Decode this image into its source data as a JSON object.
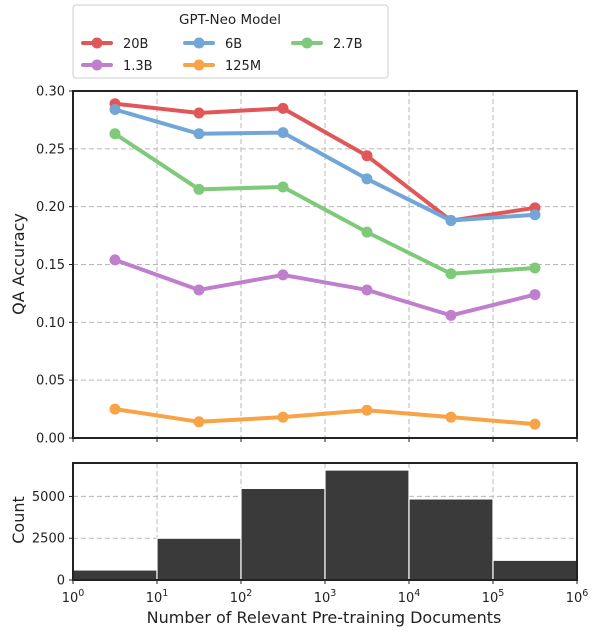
{
  "chart_data": [
    {
      "type": "line",
      "x": [
        3.16,
        31.6,
        316,
        3160,
        31600,
        316000
      ],
      "x_scale": "log",
      "ylabel": "QA Accuracy",
      "ylim": [
        0,
        0.3
      ],
      "yticks": [
        "0.00",
        "0.05",
        "0.10",
        "0.15",
        "0.20",
        "0.25",
        "0.30"
      ],
      "grid": true,
      "legend": {
        "title": "GPT-Neo Model",
        "placement": "top, above plot",
        "columns": 3
      },
      "series": [
        {
          "name": "20B",
          "color": "#e15759",
          "values": [
            0.289,
            0.281,
            0.285,
            0.244,
            0.188,
            0.199
          ]
        },
        {
          "name": "6B",
          "color": "#72a6d6",
          "values": [
            0.284,
            0.263,
            0.264,
            0.224,
            0.188,
            0.193
          ]
        },
        {
          "name": "2.7B",
          "color": "#7ec97a",
          "values": [
            0.263,
            0.215,
            0.217,
            0.178,
            0.142,
            0.147
          ]
        },
        {
          "name": "1.3B",
          "color": "#c07fcc",
          "values": [
            0.154,
            0.128,
            0.141,
            0.128,
            0.106,
            0.124
          ]
        },
        {
          "name": "125M",
          "color": "#f8a346",
          "values": [
            0.025,
            0.014,
            0.018,
            0.024,
            0.018,
            0.012
          ]
        }
      ]
    },
    {
      "type": "bar",
      "x_scale": "log",
      "bin_edges": [
        1,
        10,
        100,
        1000,
        10000,
        100000,
        1000000
      ],
      "values": [
        600,
        2500,
        5480,
        6580,
        4850,
        1180
      ],
      "color": "#3a3a3a",
      "xlabel": "Number of Relevant Pre-training Documents",
      "ylabel": "Count",
      "ylim": [
        0,
        7000
      ],
      "yticks": [
        "0",
        "2500",
        "5000"
      ],
      "xticks": [
        {
          "base": "10",
          "exp": "0"
        },
        {
          "base": "10",
          "exp": "1"
        },
        {
          "base": "10",
          "exp": "2"
        },
        {
          "base": "10",
          "exp": "3"
        },
        {
          "base": "10",
          "exp": "4"
        },
        {
          "base": "10",
          "exp": "5"
        },
        {
          "base": "10",
          "exp": "6"
        }
      ],
      "grid": true
    }
  ]
}
